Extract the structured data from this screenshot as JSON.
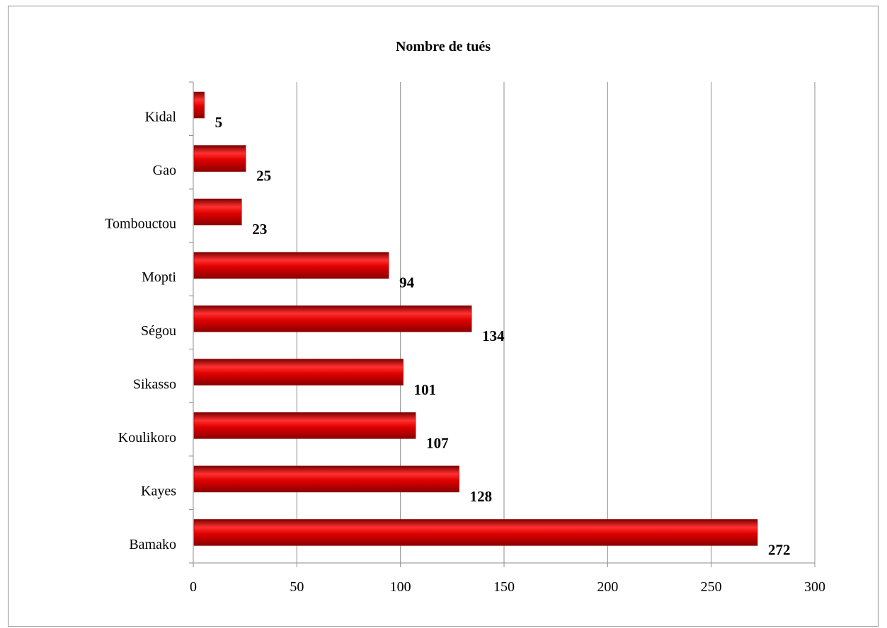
{
  "chart_data": {
    "type": "bar",
    "orientation": "horizontal",
    "title": "Nombre de tués",
    "categories": [
      "Bamako",
      "Kayes",
      "Koulikoro",
      "Sikasso",
      "Ségou",
      "Mopti",
      "Tombouctou",
      "Gao",
      "Kidal"
    ],
    "values": [
      272,
      128,
      107,
      101,
      134,
      94,
      23,
      25,
      5
    ],
    "xlim": [
      0,
      300
    ],
    "xticks": [
      0,
      50,
      100,
      150,
      200,
      250,
      300
    ],
    "grid": true,
    "legend": "none",
    "data_labels": true,
    "bar_color": "#cc0000"
  }
}
